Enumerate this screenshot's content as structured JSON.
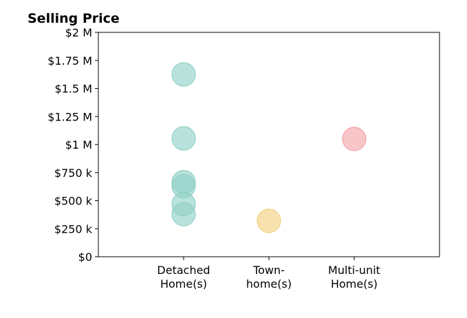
{
  "chart_data": {
    "type": "scatter",
    "title": "Selling Price",
    "xlabel": "",
    "ylabel": "",
    "ylim": [
      0,
      2000000
    ],
    "y_ticks": [
      {
        "value": 0,
        "label": "$0"
      },
      {
        "value": 250000,
        "label": "$250 k"
      },
      {
        "value": 500000,
        "label": "$500 k"
      },
      {
        "value": 750000,
        "label": "$750 k"
      },
      {
        "value": 1000000,
        "label": "$1 M"
      },
      {
        "value": 1250000,
        "label": "$1.25 M"
      },
      {
        "value": 1500000,
        "label": "$1.5 M"
      },
      {
        "value": 1750000,
        "label": "$1.75 M"
      },
      {
        "value": 2000000,
        "label": "$2 M"
      }
    ],
    "categories": [
      {
        "lines": [
          "Detached",
          "Home(s)"
        ]
      },
      {
        "lines": [
          "Town-",
          "home(s)"
        ]
      },
      {
        "lines": [
          "Multi-unit",
          "Home(s)"
        ]
      }
    ],
    "grid": false,
    "series": [
      {
        "category_index": 0,
        "color": "#8fd1c6",
        "values": [
          1625000,
          1055000,
          665000,
          630000,
          470000,
          380000
        ]
      },
      {
        "category_index": 1,
        "color": "#f2d07e",
        "values": [
          320000
        ]
      },
      {
        "category_index": 2,
        "color": "#f4a3a8",
        "values": [
          1050000
        ]
      }
    ]
  }
}
